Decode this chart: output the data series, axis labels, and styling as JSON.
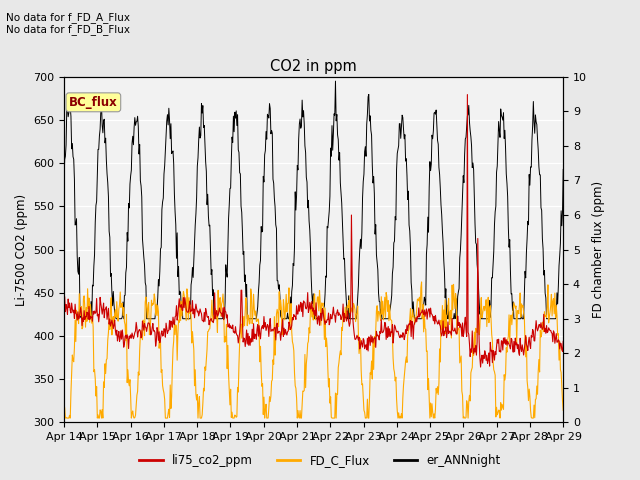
{
  "title": "CO2 in ppm",
  "ylabel_left": "Li-7500 CO2 (ppm)",
  "ylabel_right": "FD chamber flux (ppm)",
  "ylim_left": [
    300,
    700
  ],
  "ylim_right": [
    0.0,
    10.0
  ],
  "yticks_left": [
    300,
    350,
    400,
    450,
    500,
    550,
    600,
    650,
    700
  ],
  "yticks_right": [
    0.0,
    1.0,
    2.0,
    3.0,
    4.0,
    5.0,
    6.0,
    7.0,
    8.0,
    9.0,
    10.0
  ],
  "xticklabels": [
    "Apr 14",
    "Apr 15",
    "Apr 16",
    "Apr 17",
    "Apr 18",
    "Apr 19",
    "Apr 20",
    "Apr 21",
    "Apr 22",
    "Apr 23",
    "Apr 24",
    "Apr 25",
    "Apr 26",
    "Apr 27",
    "Apr 28",
    "Apr 29"
  ],
  "text_upper_left": [
    "No data for f_FD_A_Flux",
    "No data for f_FD_B_Flux"
  ],
  "annotation_box": "BC_flux",
  "line_colors": {
    "li75_co2_ppm": "#cc0000",
    "FD_C_Flux": "#ffaa00",
    "er_ANNnight": "#000000"
  },
  "legend_labels": [
    "li75_co2_ppm",
    "FD_C_Flux",
    "er_ANNnight"
  ],
  "background_color": "#e8e8e8",
  "plot_bg_color": "#f2f2f2",
  "grid_color": "#ffffff",
  "figsize": [
    6.4,
    4.8
  ],
  "dpi": 100
}
